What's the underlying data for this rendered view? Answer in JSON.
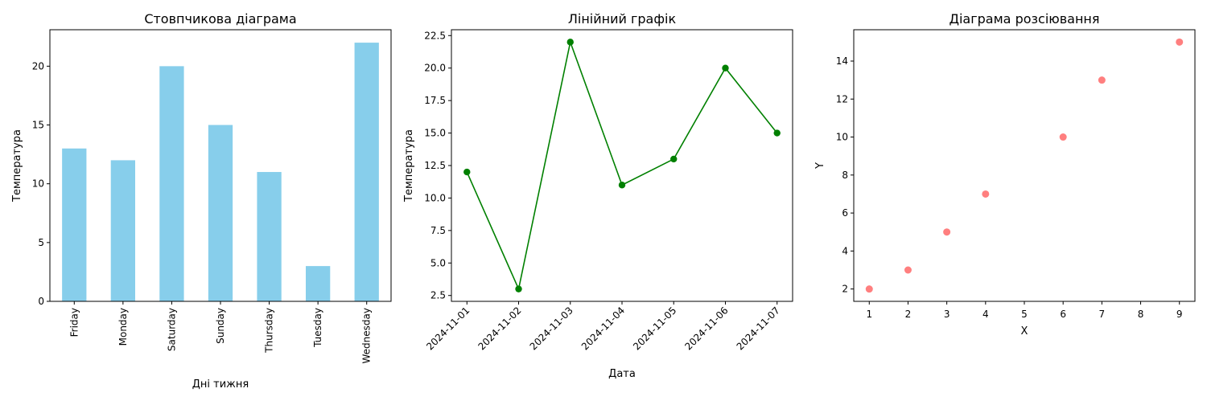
{
  "chart_data": [
    {
      "type": "bar",
      "title": "Стовпчикова діаграма",
      "xlabel": "Дні тижня",
      "ylabel": "Температура",
      "categories": [
        "Friday",
        "Monday",
        "Saturday",
        "Sunday",
        "Thursday",
        "Tuesday",
        "Wednesday"
      ],
      "values": [
        13,
        12,
        20,
        15,
        11,
        3,
        22
      ],
      "ylim": [
        0,
        23.1
      ],
      "yticks": [
        0,
        5,
        10,
        15,
        20
      ],
      "color": "#87ceeb",
      "grid": false
    },
    {
      "type": "line",
      "title": "Лінійний графік",
      "xlabel": "Дата",
      "ylabel": "Температура",
      "x": [
        "2024-11-01",
        "2024-11-02",
        "2024-11-03",
        "2024-11-04",
        "2024-11-05",
        "2024-11-06",
        "2024-11-07"
      ],
      "values": [
        12,
        3,
        22,
        11,
        13,
        20,
        15
      ],
      "ylim": [
        2.05,
        22.95
      ],
      "yticks": [
        "2.5",
        "5.0",
        "7.5",
        "10.0",
        "12.5",
        "15.0",
        "17.5",
        "20.0",
        "22.5"
      ],
      "color": "#008000",
      "marker": "circle",
      "grid": false
    },
    {
      "type": "scatter",
      "title": "Діаграма розсіювання",
      "xlabel": "X",
      "ylabel": "Y",
      "x": [
        1,
        2,
        3,
        4,
        6,
        7,
        9
      ],
      "values": [
        2,
        3,
        5,
        7,
        10,
        13,
        15
      ],
      "xlim": [
        0.6,
        9.4
      ],
      "ylim": [
        1.35,
        15.65
      ],
      "xticks": [
        1,
        2,
        3,
        4,
        5,
        6,
        7,
        8,
        9
      ],
      "yticks": [
        2,
        4,
        6,
        8,
        10,
        12,
        14
      ],
      "color": "#ff0000",
      "alpha": 0.5,
      "grid": false
    }
  ]
}
